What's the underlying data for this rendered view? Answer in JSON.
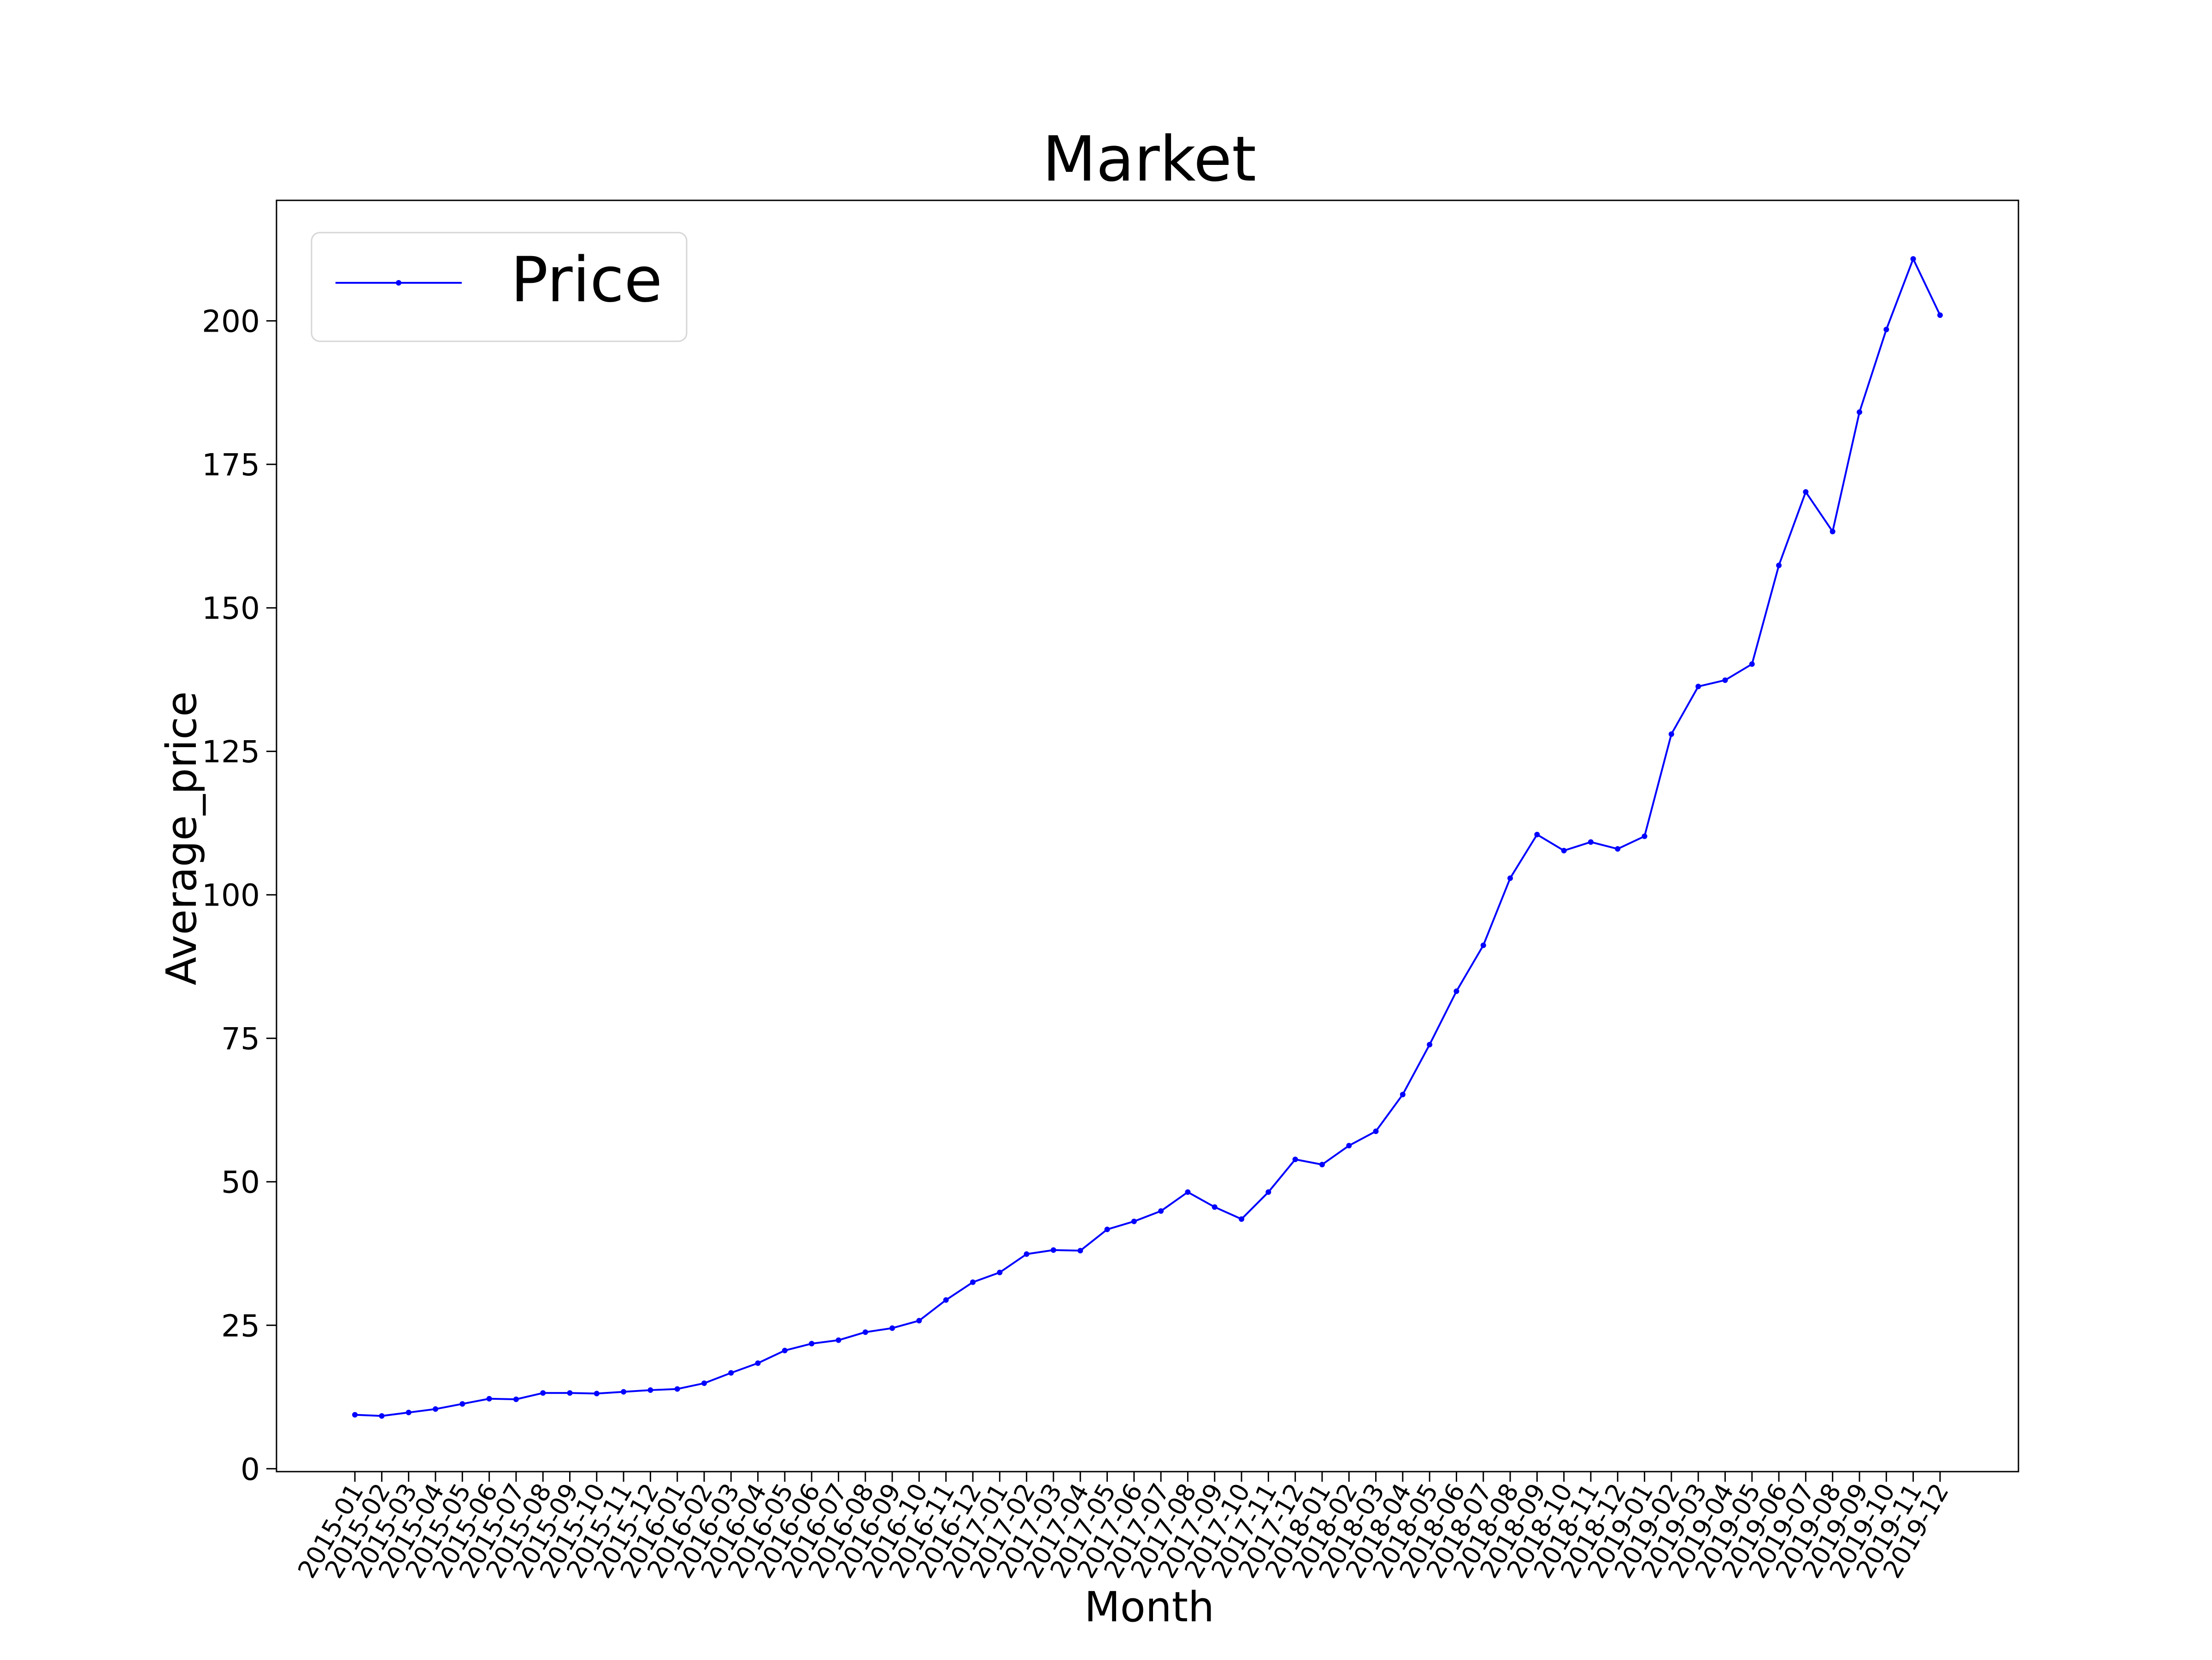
{
  "chart_data": {
    "type": "line",
    "title": "Market",
    "xlabel": "Month",
    "ylabel": "Average_price",
    "ylim": [
      -0.5,
      221
    ],
    "yticks": [
      0,
      25,
      50,
      75,
      100,
      125,
      150,
      175,
      200
    ],
    "grid": false,
    "legend_position": "top-left",
    "categories": [
      "2015-01",
      "2015-02",
      "2015-03",
      "2015-04",
      "2015-05",
      "2015-06",
      "2015-07",
      "2015-08",
      "2015-09",
      "2015-10",
      "2015-11",
      "2015-12",
      "2016-01",
      "2016-02",
      "2016-03",
      "2016-04",
      "2016-05",
      "2016-06",
      "2016-07",
      "2016-08",
      "2016-09",
      "2016-10",
      "2016-11",
      "2016-12",
      "2017-01",
      "2017-02",
      "2017-03",
      "2017-04",
      "2017-05",
      "2017-06",
      "2017-07",
      "2017-08",
      "2017-09",
      "2017-10",
      "2017-11",
      "2017-12",
      "2018-01",
      "2018-02",
      "2018-03",
      "2018-04",
      "2018-05",
      "2018-06",
      "2018-07",
      "2018-08",
      "2018-09",
      "2018-10",
      "2018-11",
      "2018-12",
      "2019-01",
      "2019-02",
      "2019-03",
      "2019-04",
      "2019-05",
      "2019-06",
      "2019-07",
      "2019-08",
      "2019-09",
      "2019-10",
      "2019-11",
      "2019-12"
    ],
    "series": [
      {
        "name": "Price",
        "color": "#0000ff",
        "marker": "dot",
        "values": [
          9.4,
          9.2,
          9.8,
          10.4,
          11.3,
          12.2,
          12.1,
          13.2,
          13.2,
          13.1,
          13.4,
          13.7,
          13.9,
          14.9,
          16.7,
          18.4,
          20.6,
          21.8,
          22.4,
          23.8,
          24.5,
          25.8,
          29.4,
          32.5,
          34.2,
          37.4,
          38.1,
          38.0,
          41.7,
          43.1,
          44.9,
          48.2,
          45.6,
          43.5,
          48.2,
          53.9,
          53.0,
          56.3,
          58.8,
          65.2,
          73.9,
          83.2,
          91.2,
          102.9,
          110.5,
          107.7,
          109.2,
          108.0,
          110.2,
          128.0,
          136.3,
          137.4,
          140.2,
          157.4,
          170.2,
          163.3,
          184.1,
          198.5,
          210.8,
          201.0
        ]
      }
    ]
  }
}
